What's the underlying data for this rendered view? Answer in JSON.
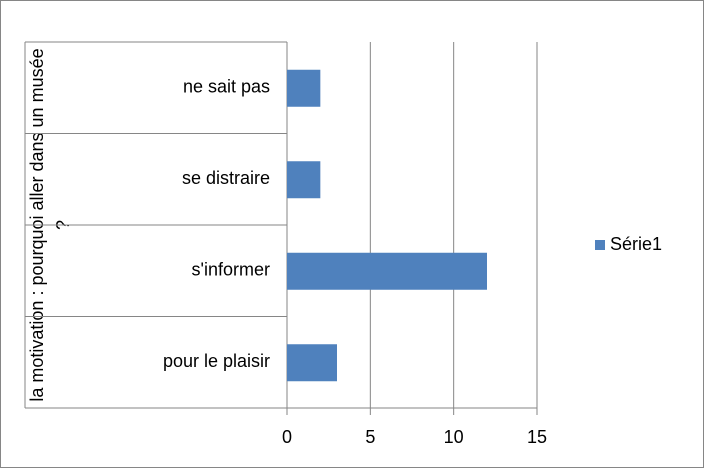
{
  "chart_data": {
    "type": "bar",
    "orientation": "horizontal",
    "y_axis_label": "la motivation : pourquoi aller dans un musée ?",
    "categories": [
      "pour le plaisir",
      "s'informer",
      "se distraire",
      "ne sait pas"
    ],
    "series": [
      {
        "name": "Série1",
        "color": "#4f81bd",
        "values": [
          3,
          12,
          2,
          2
        ]
      }
    ],
    "xlim": [
      0,
      15
    ],
    "xticks": [
      0,
      5,
      10,
      15
    ],
    "grid": true,
    "legend": "right"
  }
}
